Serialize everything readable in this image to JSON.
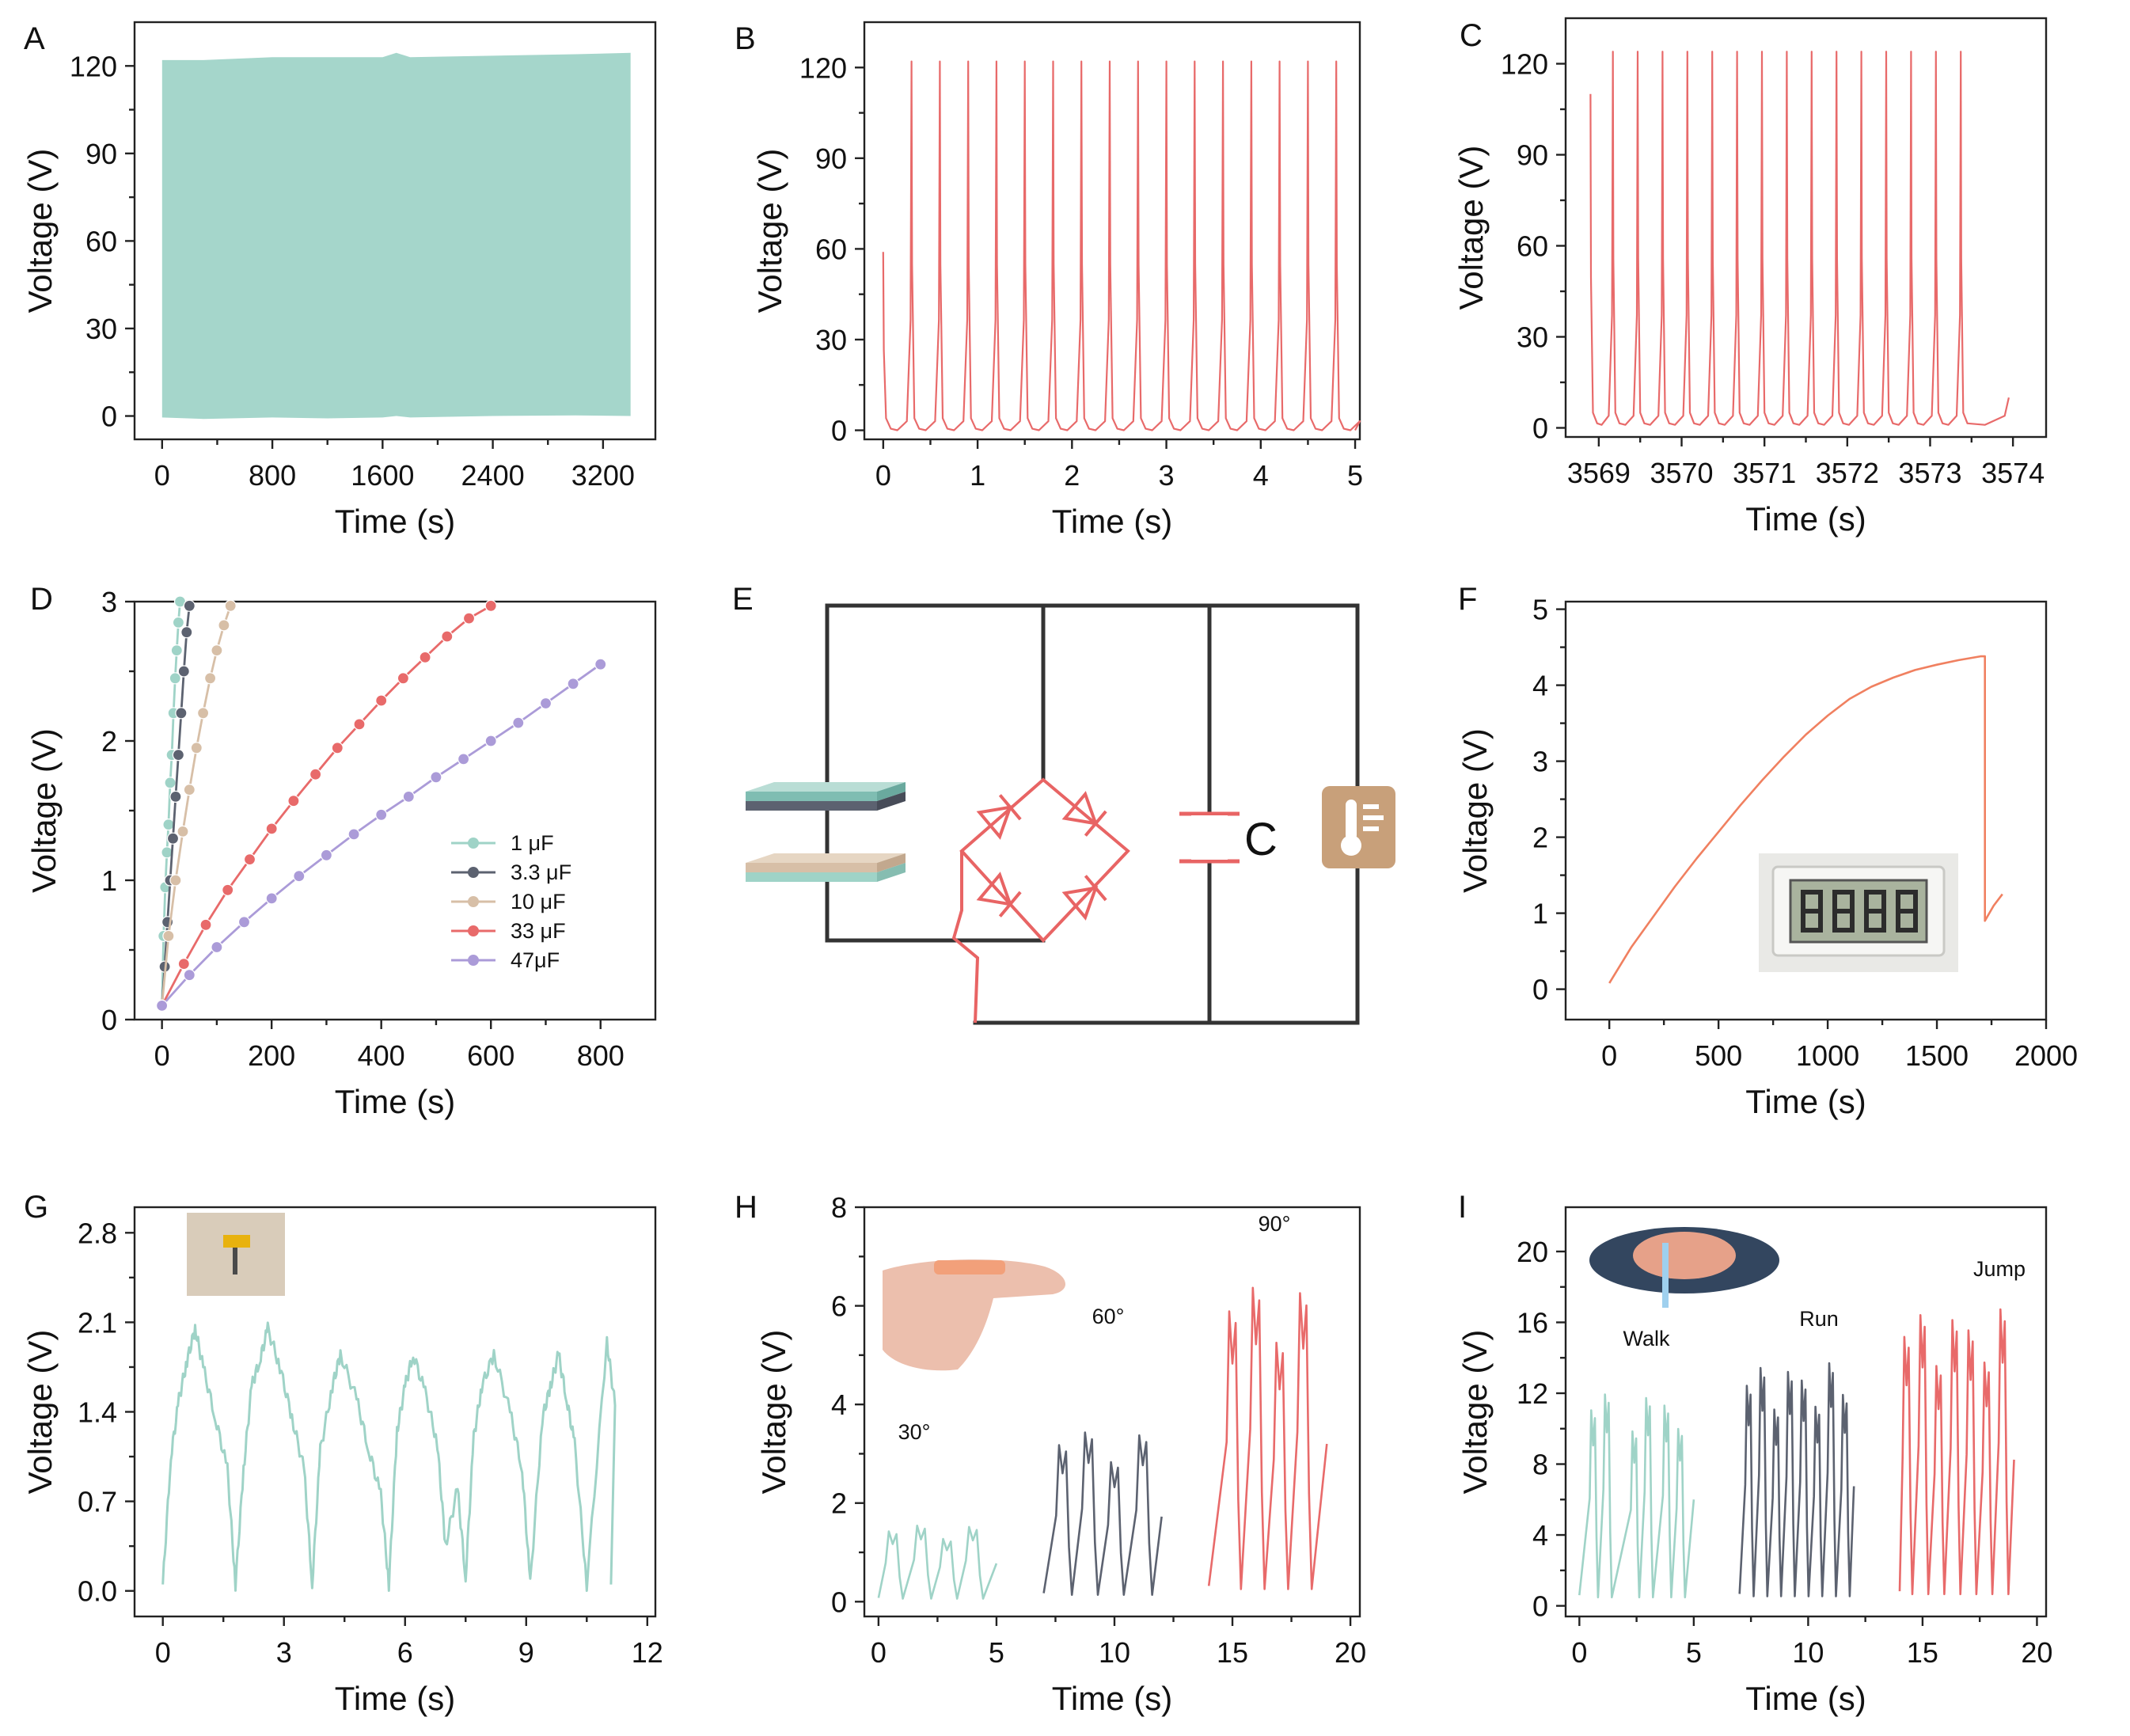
{
  "colors": {
    "teal": "#9fd3c7",
    "teal_fill": "#a5d6cb",
    "gray": "#5c6270",
    "tan": "#d7bfa7",
    "red": "#e86a6a",
    "purple": "#ab9bd8",
    "orange": "#f08060",
    "circuit_red": "#e86464",
    "wire": "#333333",
    "thermo": "#c8a07a"
  },
  "chart_data": [
    {
      "panel": "A",
      "type": "area",
      "xlabel": "Time (s)",
      "ylabel": "Voltage (V)",
      "xlim": [
        -200,
        3580
      ],
      "ylim": [
        -8,
        135
      ],
      "xticks": [
        0,
        800,
        1600,
        2400,
        3200
      ],
      "yticks": [
        0,
        30,
        60,
        90,
        120
      ],
      "x": [
        0,
        300,
        800,
        1200,
        1600,
        1700,
        1800,
        2400,
        3000,
        3400
      ],
      "upper": [
        122,
        122,
        123,
        123,
        123,
        124.5,
        123,
        123.5,
        124,
        124.5
      ],
      "lower": [
        -0.5,
        -1,
        -0.5,
        -0.8,
        -0.5,
        0,
        -0.5,
        0,
        0.2,
        0
      ]
    },
    {
      "panel": "B",
      "type": "line",
      "xlabel": "Time (s)",
      "ylabel": "Voltage (V)",
      "xlim": [
        -0.2,
        5.05
      ],
      "ylim": [
        -3,
        135
      ],
      "xticks": [
        0,
        1,
        2,
        3,
        4,
        5
      ],
      "yticks": [
        0,
        30,
        60,
        90,
        120
      ],
      "peak_times": [
        0,
        0.3,
        0.6,
        0.9,
        1.2,
        1.5,
        1.8,
        2.1,
        2.4,
        2.7,
        3.0,
        3.3,
        3.6,
        3.9,
        4.2,
        4.5,
        4.8
      ],
      "peak_values": [
        59,
        122,
        122,
        122,
        122,
        122,
        122,
        122,
        122,
        122,
        122,
        122,
        122,
        122,
        122,
        122,
        122
      ],
      "baseline": 0
    },
    {
      "panel": "C",
      "type": "line",
      "xlabel": "Time (s)",
      "ylabel": "Voltage (V)",
      "xlim": [
        3568.6,
        3574.4
      ],
      "ylim": [
        -3,
        135
      ],
      "xticks": [
        3569,
        3570,
        3571,
        3572,
        3573,
        3574
      ],
      "xtick_labels": [
        "3569",
        "3570",
        "3571",
        "3572",
        "3573",
        "3574"
      ],
      "yticks": [
        0,
        30,
        60,
        90,
        120
      ],
      "peak_times": [
        3568.9,
        3569.17,
        3569.47,
        3569.77,
        3570.07,
        3570.37,
        3570.67,
        3570.97,
        3571.27,
        3571.57,
        3571.87,
        3572.17,
        3572.47,
        3572.77,
        3573.07,
        3573.37
      ],
      "peak_values": [
        110,
        124,
        124,
        124,
        124,
        124,
        124,
        124,
        124,
        124,
        124,
        124,
        124,
        124,
        124,
        124
      ],
      "baseline": 1,
      "end": [
        3573.95,
        10
      ]
    },
    {
      "panel": "D",
      "type": "line",
      "xlabel": "Time (s)",
      "ylabel": "Voltage (V)",
      "xlim": [
        -50,
        900
      ],
      "ylim": [
        0,
        3
      ],
      "xticks": [
        0,
        200,
        400,
        600,
        800
      ],
      "yticks": [
        0,
        1,
        2,
        3
      ],
      "legend_position": "center-right",
      "series": [
        {
          "name": "1 μF",
          "color": "#9fd3c7",
          "x": [
            0,
            3,
            6,
            9,
            12,
            15,
            18,
            21,
            24,
            27,
            30,
            33
          ],
          "y": [
            0.1,
            0.6,
            0.95,
            1.2,
            1.4,
            1.7,
            1.9,
            2.2,
            2.45,
            2.65,
            2.85,
            3.0
          ]
        },
        {
          "name": "3.3 μF",
          "color": "#5c6270",
          "x": [
            0,
            5,
            10,
            15,
            20,
            25,
            30,
            35,
            40,
            45,
            50
          ],
          "y": [
            0.1,
            0.38,
            0.7,
            1.0,
            1.3,
            1.6,
            1.9,
            2.2,
            2.5,
            2.78,
            2.97
          ]
        },
        {
          "name": "10 μF",
          "color": "#d7bfa7",
          "x": [
            0,
            12,
            25,
            38,
            50,
            63,
            75,
            88,
            100,
            113,
            125
          ],
          "y": [
            0.1,
            0.6,
            1.0,
            1.35,
            1.65,
            1.95,
            2.2,
            2.45,
            2.65,
            2.83,
            2.97
          ]
        },
        {
          "name": "33 μF",
          "color": "#e86a6a",
          "x": [
            0,
            40,
            80,
            120,
            160,
            200,
            240,
            280,
            320,
            360,
            400,
            440,
            480,
            520,
            560,
            600
          ],
          "y": [
            0.1,
            0.4,
            0.68,
            0.93,
            1.15,
            1.37,
            1.57,
            1.76,
            1.95,
            2.12,
            2.29,
            2.45,
            2.6,
            2.75,
            2.88,
            2.97
          ]
        },
        {
          "name": "47μF",
          "color": "#ab9bd8",
          "x": [
            0,
            50,
            100,
            150,
            200,
            250,
            300,
            350,
            400,
            450,
            500,
            550,
            600,
            650,
            700,
            750,
            800
          ],
          "y": [
            0.1,
            0.32,
            0.52,
            0.7,
            0.87,
            1.03,
            1.18,
            1.33,
            1.47,
            1.6,
            1.74,
            1.87,
            2.0,
            2.13,
            2.27,
            2.41,
            2.55
          ]
        }
      ]
    },
    {
      "panel": "F",
      "type": "line",
      "xlabel": "Time (s)",
      "ylabel": "Voltage (V)",
      "xlim": [
        -200,
        2000
      ],
      "ylim": [
        -0.4,
        5.1
      ],
      "xticks": [
        0,
        500,
        1000,
        1500,
        2000
      ],
      "yticks": [
        0,
        1,
        2,
        3,
        4,
        5
      ],
      "x": [
        0,
        100,
        200,
        300,
        400,
        500,
        600,
        700,
        800,
        900,
        1000,
        1100,
        1200,
        1300,
        1400,
        1500,
        1600,
        1700,
        1720,
        1720,
        1760,
        1800
      ],
      "y": [
        0.08,
        0.55,
        0.95,
        1.35,
        1.72,
        2.07,
        2.42,
        2.75,
        3.06,
        3.35,
        3.6,
        3.82,
        3.98,
        4.1,
        4.2,
        4.27,
        4.33,
        4.38,
        4.38,
        0.9,
        1.1,
        1.25
      ],
      "inset": "thermometer LCD display"
    },
    {
      "panel": "G",
      "type": "line",
      "xlabel": "Time (s)",
      "ylabel": "Voltage (V)",
      "xlim": [
        -0.7,
        12.2
      ],
      "ylim": [
        -0.2,
        3.0
      ],
      "xticks": [
        0,
        3,
        6,
        9,
        12
      ],
      "yticks": [
        0.0,
        0.7,
        1.4,
        2.1,
        2.8
      ],
      "ytick_labels": [
        "0.0",
        "0.7",
        "1.4",
        "2.1",
        "2.8"
      ],
      "x": [
        0,
        0.2,
        0.4,
        0.6,
        0.8,
        1.0,
        1.3,
        1.6,
        1.8,
        2.0,
        2.2,
        2.4,
        2.6,
        2.9,
        3.2,
        3.5,
        3.7,
        3.9,
        4.2,
        4.4,
        4.8,
        5.1,
        5.4,
        5.6,
        5.8,
        6.0,
        6.2,
        6.5,
        6.8,
        7.0,
        7.3,
        7.5,
        7.7,
        7.9,
        8.2,
        8.6,
        8.9,
        9.1,
        9.4,
        9.6,
        9.8,
        10.0,
        10.2,
        10.5,
        11.0,
        11.2
      ],
      "y": [
        0.05,
        1.05,
        1.5,
        1.8,
        2.05,
        1.75,
        1.35,
        0.95,
        0.05,
        0.95,
        1.6,
        1.8,
        2.05,
        1.75,
        1.35,
        0.95,
        0.05,
        1.1,
        1.6,
        1.85,
        1.5,
        1.1,
        0.75,
        0.05,
        1.25,
        1.6,
        1.85,
        1.55,
        1.15,
        0.35,
        0.8,
        0.1,
        1.2,
        1.6,
        1.85,
        1.4,
        0.95,
        0.05,
        1.35,
        1.6,
        1.85,
        1.5,
        1.15,
        0.05,
        1.95,
        1.45
      ],
      "inset": "device photo"
    },
    {
      "panel": "H",
      "type": "line",
      "xlabel": "Time (s)",
      "ylabel": "Voltage (V)",
      "xlim": [
        -0.6,
        20.4
      ],
      "ylim": [
        -0.3,
        8.0
      ],
      "xticks": [
        0,
        5,
        10,
        15,
        20
      ],
      "yticks": [
        0,
        2,
        4,
        6,
        8
      ],
      "annotations": [
        "30°",
        "60°",
        "90°"
      ],
      "series": [
        {
          "name": "30°",
          "color": "#9fd3c7",
          "peaks": [
            0.6,
            1.8,
            2.9,
            4.0
          ],
          "amp": 1.55,
          "start": 0,
          "end": 5
        },
        {
          "name": "60°",
          "color": "#5c6270",
          "peaks": [
            7.8,
            8.9,
            10.0,
            11.2
          ],
          "amp": 3.45,
          "start": 7,
          "end": 12
        },
        {
          "name": "90°",
          "color": "#e86a6a",
          "peaks": [
            15.0,
            16.0,
            17.0,
            18.0
          ],
          "amp": 6.4,
          "start": 14,
          "end": 19
        }
      ],
      "inset": "finger bending photo"
    },
    {
      "panel": "I",
      "type": "line",
      "xlabel": "Time (s)",
      "ylabel": "Voltage (V)",
      "xlim": [
        -0.6,
        20.4
      ],
      "ylim": [
        -0.6,
        22.5
      ],
      "xticks": [
        0,
        5,
        10,
        15,
        20
      ],
      "yticks": [
        0,
        4,
        8,
        12,
        16,
        20
      ],
      "annotations": [
        "Walk",
        "Run",
        "Jump"
      ],
      "series": [
        {
          "name": "Walk",
          "color": "#9fd3c7",
          "peaks": [
            0.6,
            1.2,
            2.4,
            3.0,
            3.8,
            4.4
          ],
          "amp": 12,
          "start": 0,
          "end": 5
        },
        {
          "name": "Run",
          "color": "#5c6270",
          "peaks": [
            7.4,
            8.0,
            8.6,
            9.2,
            9.8,
            10.4,
            11.0,
            11.6
          ],
          "amp": 13.5,
          "start": 7,
          "end": 12
        },
        {
          "name": "Jump",
          "color": "#e86a6a",
          "peaks": [
            14.3,
            15.0,
            15.7,
            16.4,
            17.1,
            17.8,
            18.5
          ],
          "amp": 16.5,
          "start": 14,
          "end": 19
        }
      ],
      "inset": "shoe with sensor photo"
    }
  ],
  "panels": {
    "A": "A",
    "B": "B",
    "C": "C",
    "D": "D",
    "E": "E",
    "F": "F",
    "G": "G",
    "H": "H",
    "I": "I"
  },
  "circuit": {
    "capacitor_label": "C",
    "load": "thermometer-icon"
  }
}
